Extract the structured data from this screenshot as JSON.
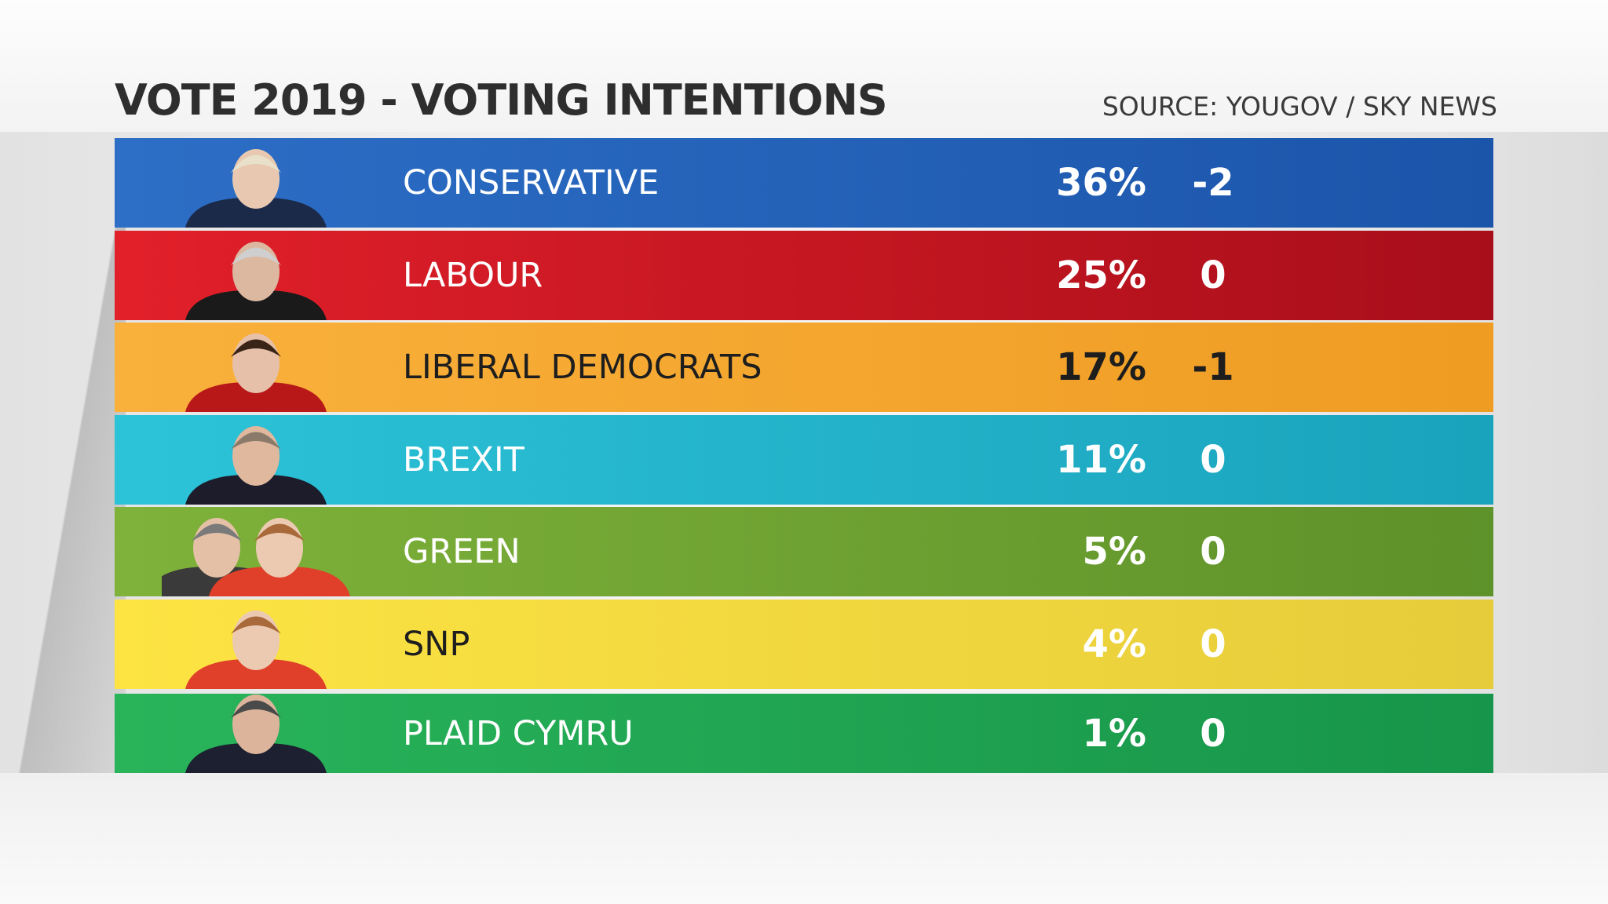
{
  "header": {
    "title": "VOTE 2019 - VOTING INTENTIONS",
    "source": "SOURCE: YOUGOV / SKY NEWS"
  },
  "table": {
    "rows": [
      {
        "party": "CONSERVATIVE",
        "share": "36%",
        "change": "-2"
      },
      {
        "party": "LABOUR",
        "share": "25%",
        "change": "0"
      },
      {
        "party": "LIBERAL DEMOCRATS",
        "share": "17%",
        "change": "-1"
      },
      {
        "party": "BREXIT",
        "share": "11%",
        "change": "0"
      },
      {
        "party": "GREEN",
        "share": "5%",
        "change": "0"
      },
      {
        "party": "SNP",
        "share": "4%",
        "change": "0"
      },
      {
        "party": "PLAID CYMRU",
        "share": "1%",
        "change": "0"
      }
    ]
  }
}
